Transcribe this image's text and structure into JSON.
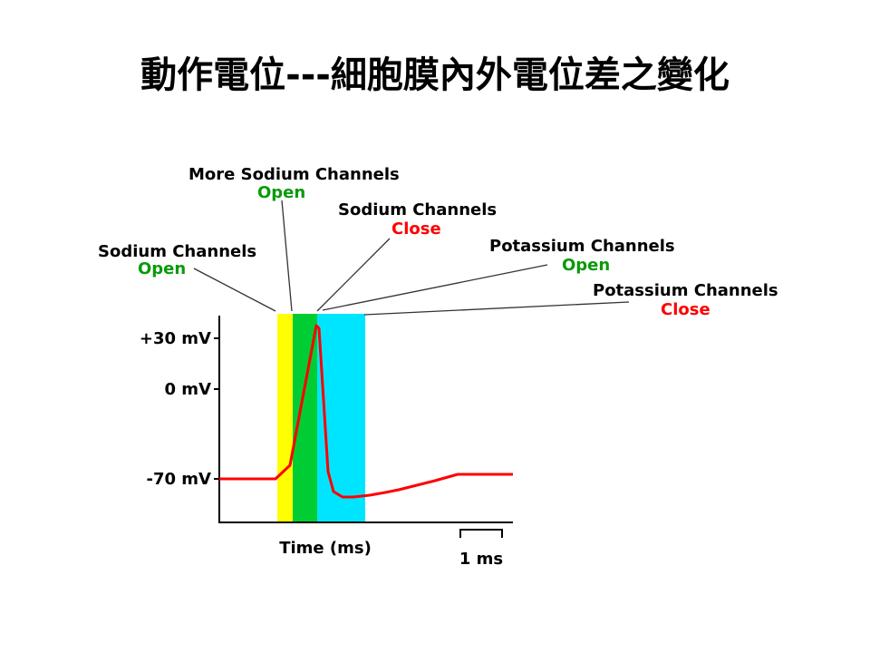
{
  "title": "動作電位---細胞膜內外電位差之變化",
  "annotations": {
    "sodium_open": {
      "name": "Sodium Channels",
      "state": "Open"
    },
    "more_sodium_open": {
      "name": "More Sodium Channels",
      "state": "Open"
    },
    "sodium_close": {
      "name": "Sodium Channels",
      "state": "Close"
    },
    "potassium_open": {
      "name": "Potassium Channels",
      "state": "Open"
    },
    "potassium_close": {
      "name": "Potassium Channels",
      "state": "Close"
    }
  },
  "axes": {
    "y_ticks": [
      "+30 mV",
      "0 mV",
      "-70 mV"
    ],
    "x_label": "Time (ms)",
    "scale_bar": "1 ms"
  },
  "colors": {
    "phase_sodium_open": "#ffff00",
    "phase_more_sodium": "#00cc33",
    "phase_potassium": "#00e5ff",
    "trace": "#ff0000",
    "open_text": "#0a9a0a",
    "close_text": "#ff0000"
  }
}
